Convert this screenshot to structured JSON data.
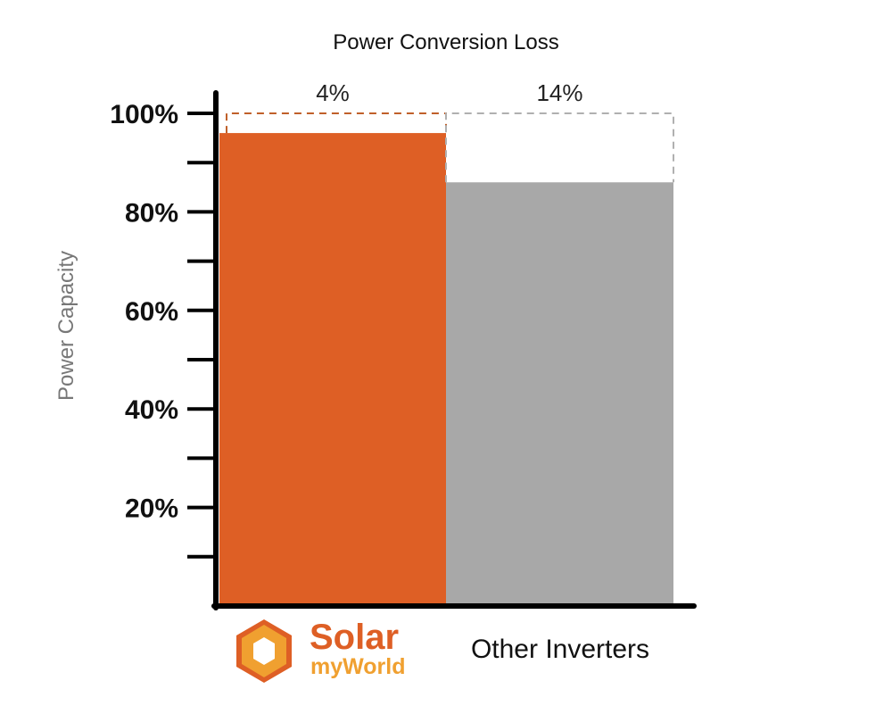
{
  "chart_data": {
    "type": "bar",
    "title": "Power Conversion Loss",
    "xlabel": "",
    "ylabel": "Power Capacity",
    "ylim": [
      0,
      100
    ],
    "y_ticks_major": [
      {
        "value": 20,
        "label": "20%"
      },
      {
        "value": 40,
        "label": "40%"
      },
      {
        "value": 60,
        "label": "60%"
      },
      {
        "value": 80,
        "label": "80%"
      },
      {
        "value": 100,
        "label": "100%"
      }
    ],
    "y_ticks_minor": [
      10,
      30,
      50,
      70,
      90
    ],
    "grid": false,
    "legend": "none",
    "categories": [
      "SolarmyWorld",
      "Other Inverters"
    ],
    "values": [
      96,
      86
    ],
    "loss_labels": [
      "4%",
      "14%"
    ],
    "colors": [
      "#de5f25",
      "#a8a8a8"
    ],
    "loss_outline_colors": [
      "#c0602a",
      "#b0b0b0"
    ]
  },
  "logo": {
    "line1": "Solar",
    "line2": "myWorld",
    "color_primary": "#de5f25",
    "color_secondary": "#f0a030"
  }
}
